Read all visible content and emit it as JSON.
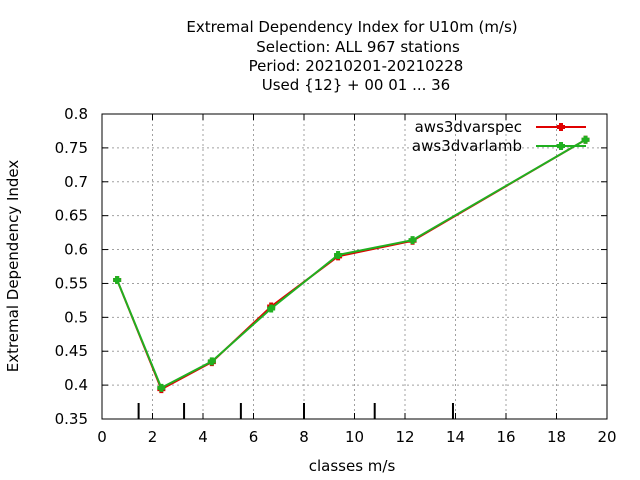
{
  "chart_data": {
    "type": "line",
    "title_lines": [
      "Extremal Dependency Index  for U10m (m/s)",
      "Selection: ALL    967 stations",
      "Period: 20210201-20210228",
      "Used {12} + 00 01 ... 36"
    ],
    "xlabel": "classes m/s",
    "ylabel": "Extremal Dependency Index",
    "xlim": [
      0,
      20
    ],
    "ylim": [
      0.35,
      0.8
    ],
    "xticks": [
      0,
      2,
      4,
      6,
      8,
      10,
      12,
      14,
      16,
      18,
      20
    ],
    "yticks": [
      0.35,
      0.4,
      0.45,
      0.5,
      0.55,
      0.6,
      0.65,
      0.7,
      0.75,
      0.8
    ],
    "xtick_labels": [
      "0",
      "2",
      "4",
      "6",
      "8",
      "10",
      "12",
      "14",
      "16",
      "18",
      "20"
    ],
    "ytick_labels": [
      "0.35",
      "0.4",
      "0.45",
      "0.5",
      "0.55",
      "0.6",
      "0.65",
      "0.7",
      "0.75",
      "0.8"
    ],
    "grid": true,
    "legend_position": "top-right",
    "class_markers": [
      1.45,
      3.25,
      5.5,
      8.0,
      10.8,
      13.9
    ],
    "series": [
      {
        "name": "aws3dvarspec",
        "color": "#e00000",
        "x": [
          0.6,
          2.35,
          4.35,
          6.7,
          9.35,
          12.3,
          19.15
        ],
        "y": [
          0.555,
          0.394,
          0.434,
          0.516,
          0.59,
          0.613,
          0.762
        ]
      },
      {
        "name": "aws3dvarlamb",
        "color": "#20b020",
        "x": [
          0.6,
          2.35,
          4.35,
          6.7,
          9.35,
          12.3,
          19.15
        ],
        "y": [
          0.555,
          0.396,
          0.435,
          0.513,
          0.592,
          0.614,
          0.762
        ]
      }
    ]
  }
}
